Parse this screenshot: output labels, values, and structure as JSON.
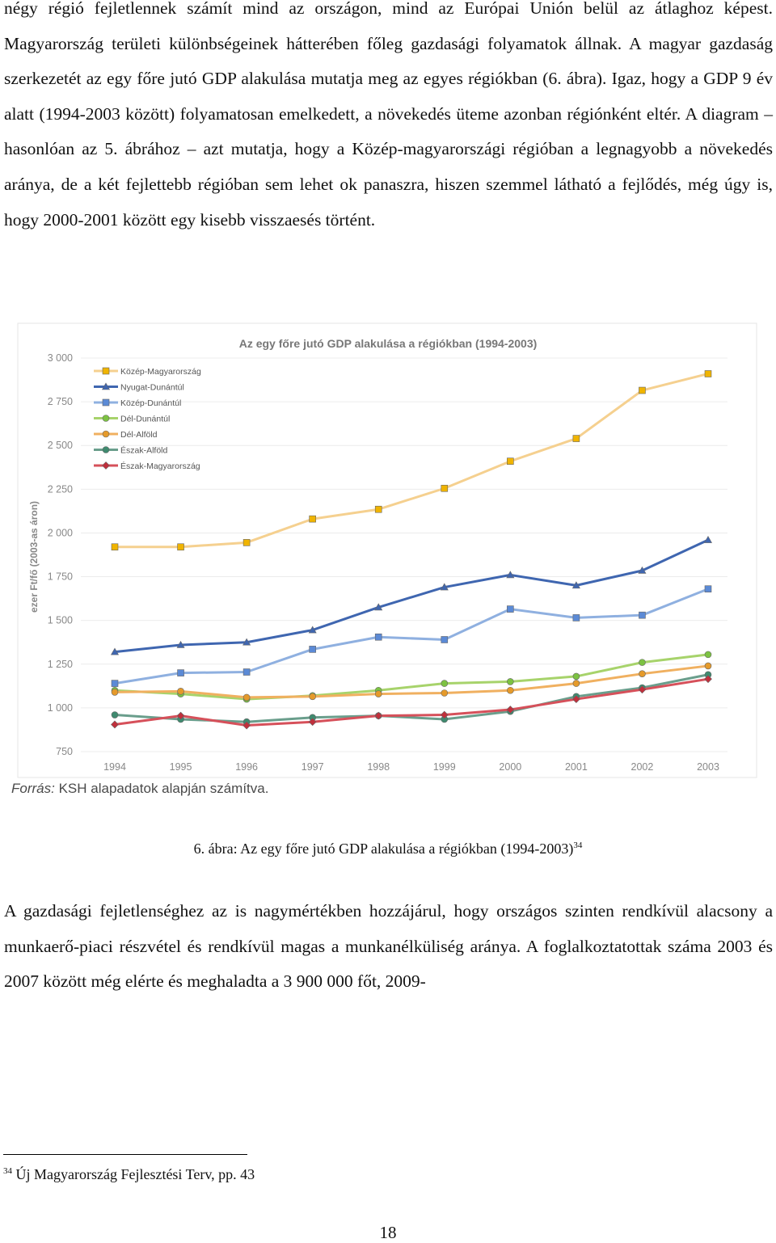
{
  "paragraph_top": "négy régió fejletlennek számít mind az országon, mind az Európai Unión belül az átlaghoz képest. Magyarország területi különbségeinek hátterében főleg gazdasági folyamatok állnak. A magyar gazdaság szerkezetét az egy főre jutó GDP alakulása mutatja meg az egyes régiókban (6. ábra). Igaz, hogy a GDP 9 év alatt (1994-2003 között) folyamatosan emelkedett, a növekedés üteme azonban régiónként eltér. A diagram – hasonlóan az 5. ábrához – azt mutatja, hogy a Közép-magyarországi régióban a legnagyobb a növekedés aránya, de a két fejlettebb régióban sem lehet ok panaszra, hiszen szemmel látható a fejlődés, még úgy is, hogy 2000-2001 között egy kisebb visszaesés történt.",
  "chart_data": {
    "type": "line",
    "title": "Az egy főre jutó GDP alakulása a régiókban (1994-2003)",
    "xlabel": "",
    "ylabel": "ezer Ft/fő (2003-as áron)",
    "categories": [
      "1994",
      "1995",
      "1996",
      "1997",
      "1998",
      "1999",
      "2000",
      "2001",
      "2002",
      "2003"
    ],
    "ylim": [
      750,
      3000
    ],
    "yticks": [
      750,
      1000,
      1250,
      1500,
      1750,
      2000,
      2250,
      2500,
      2750,
      3000
    ],
    "ytick_labels": [
      "750",
      "1 000",
      "1 250",
      "1 500",
      "1 750",
      "2 000",
      "2 250",
      "2 500",
      "2 750",
      "3 000"
    ],
    "grid": true,
    "legend_position": "top-left",
    "series": [
      {
        "name": "Közép-Magyarország",
        "color": "#f5d08f",
        "marker": "square",
        "marker_color": "#f0b400",
        "values": [
          1920,
          1920,
          1945,
          2080,
          2135,
          2255,
          2410,
          2540,
          2815,
          2910
        ]
      },
      {
        "name": "Nyugat-Dunántúl",
        "color": "#3f66b0",
        "marker": "triangle",
        "marker_color": "#3f66b0",
        "values": [
          1320,
          1360,
          1375,
          1445,
          1575,
          1690,
          1760,
          1700,
          1785,
          1960
        ]
      },
      {
        "name": "Közép-Dunántúl",
        "color": "#8fb0e0",
        "marker": "square",
        "marker_color": "#5b8ad6",
        "values": [
          1140,
          1200,
          1205,
          1335,
          1405,
          1390,
          1565,
          1515,
          1530,
          1680
        ]
      },
      {
        "name": "Dél-Dunántúl",
        "color": "#a7d36b",
        "marker": "circle",
        "marker_color": "#7cc242",
        "values": [
          1100,
          1080,
          1050,
          1070,
          1100,
          1140,
          1150,
          1180,
          1260,
          1305
        ]
      },
      {
        "name": "Dél-Alföld",
        "color": "#f0b060",
        "marker": "circle",
        "marker_color": "#e59a2a",
        "values": [
          1090,
          1095,
          1060,
          1065,
          1080,
          1085,
          1100,
          1140,
          1195,
          1240
        ]
      },
      {
        "name": "Észak-Alföld",
        "color": "#6a9e8c",
        "marker": "circle",
        "marker_color": "#3f8a6f",
        "values": [
          960,
          935,
          920,
          945,
          955,
          935,
          980,
          1065,
          1115,
          1190
        ]
      },
      {
        "name": "Észak-Magyarország",
        "color": "#d6505a",
        "marker": "diamond",
        "marker_color": "#c0303c",
        "values": [
          905,
          955,
          900,
          920,
          955,
          960,
          990,
          1050,
          1105,
          1165
        ]
      }
    ]
  },
  "source_label": "Forrás:",
  "source_text": "KSH alapadatok alapján számítva.",
  "caption_text": "6. ábra: Az egy főre jutó GDP alakulása a régiókban (1994-2003)",
  "caption_ref": "34",
  "paragraph_bottom": "A gazdasági fejletlenséghez az is nagymértékben hozzájárul, hogy országos szinten rendkívül alacsony a munkaerő-piaci részvétel és rendkívül magas a munkanélküliség aránya. A foglalkoztatottak száma 2003 és 2007 között még elérte és meghaladta a 3 900 000 főt, 2009-",
  "footnote_number": "34",
  "footnote_text": "Új Magyarország Fejlesztési Terv, pp. 43",
  "page_number": "18"
}
